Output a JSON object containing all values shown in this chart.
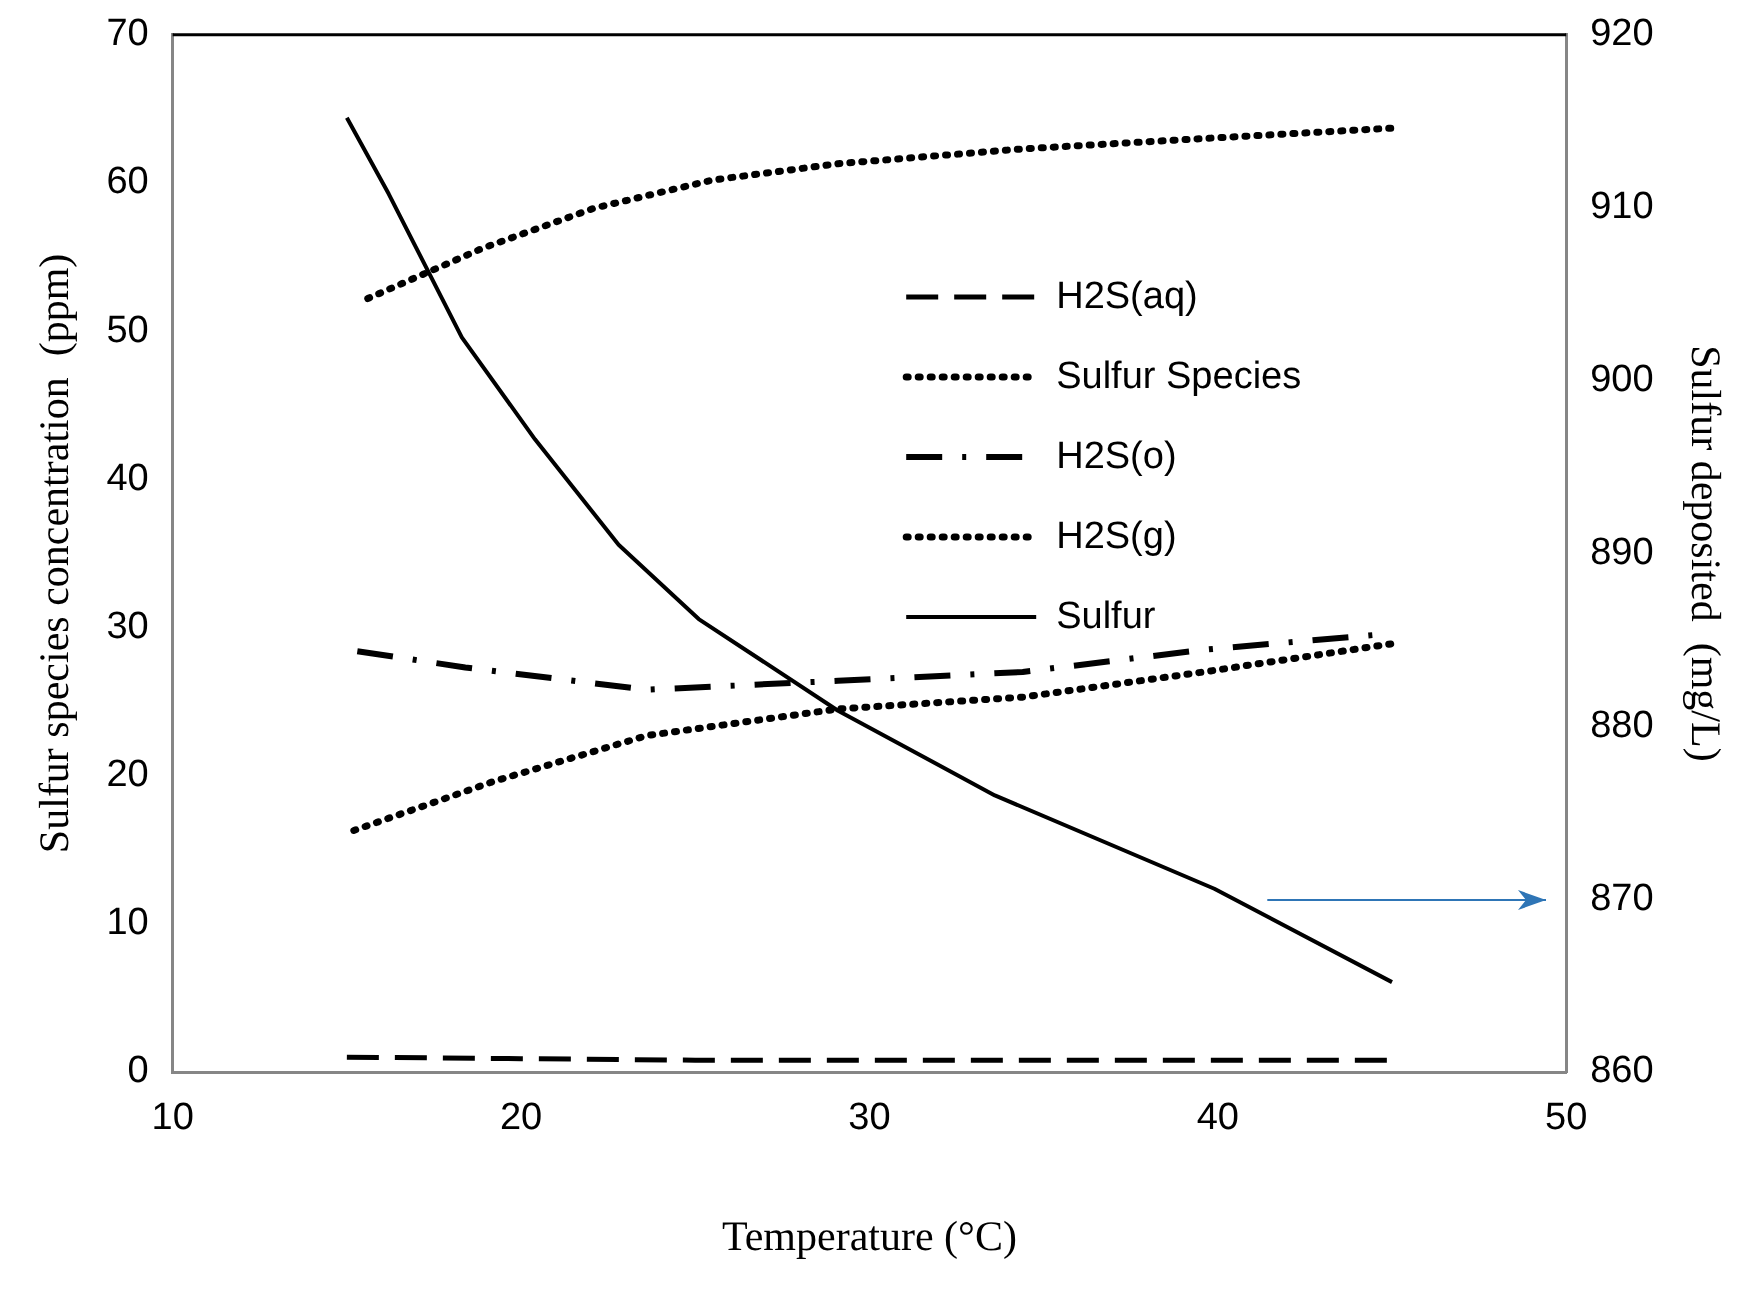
{
  "chart_data": {
    "type": "line",
    "xlabel": "Temperature (°C)",
    "ylabel": "Sulfur species concentration  (ppm)",
    "y2label": "Sulfur deposited  (mg/L)",
    "xlim": [
      10,
      50
    ],
    "xticks": [
      10,
      20,
      30,
      40,
      50
    ],
    "ylim": [
      0,
      70
    ],
    "yticks": [
      0,
      10,
      20,
      30,
      40,
      50,
      60,
      70
    ],
    "y2lim": [
      860,
      920
    ],
    "y2ticks": [
      860,
      870,
      880,
      890,
      900,
      910,
      920
    ],
    "grid": false,
    "legend": "right",
    "marker": "none",
    "series": [
      {
        "name": "H2S(aq)",
        "color": "#000000",
        "line_style": "dashed",
        "x": [
          15,
          20,
          25,
          30,
          35,
          40,
          45
        ],
        "values": [
          1,
          0.9,
          0.8,
          0.8,
          0.8,
          0.8,
          0.8
        ]
      },
      {
        "name": "Sulfur Species",
        "color": "#000000",
        "line_style": "dotted",
        "x": [
          15.6,
          18.9,
          22.1,
          25.5,
          29.1,
          34.4,
          39.6,
          45
        ],
        "values": [
          52.2,
          55.6,
          58.3,
          60.2,
          61.3,
          62.3,
          63,
          63.7
        ]
      },
      {
        "name": "H2S(o)",
        "color": "#000000",
        "line_style": "dashdot",
        "x": [
          15.3,
          18.4,
          23.6,
          29.1,
          34.4,
          39.6,
          45
        ],
        "values": [
          28.4,
          27.3,
          25.8,
          26.4,
          27,
          28.5,
          29.6
        ]
      },
      {
        "name": "H2S(g)",
        "color": "#000000",
        "line_style": "dotted",
        "x": [
          15.2,
          19.2,
          23.6,
          29.1,
          34.4,
          39.6,
          45
        ],
        "values": [
          16.3,
          19.6,
          22.7,
          24.5,
          25.3,
          27,
          28.9
        ]
      },
      {
        "name": "Sulfur",
        "color": "#000000",
        "line_style": "solid",
        "axis": "y2",
        "x": [
          15,
          16.2,
          18.3,
          20.4,
          22.8,
          25.1,
          29.1,
          33.6,
          39.9,
          45
        ],
        "values": [
          915.2,
          910.8,
          902.5,
          896.6,
          890.5,
          886.2,
          880.9,
          876,
          870.6,
          865.2
        ]
      }
    ]
  }
}
